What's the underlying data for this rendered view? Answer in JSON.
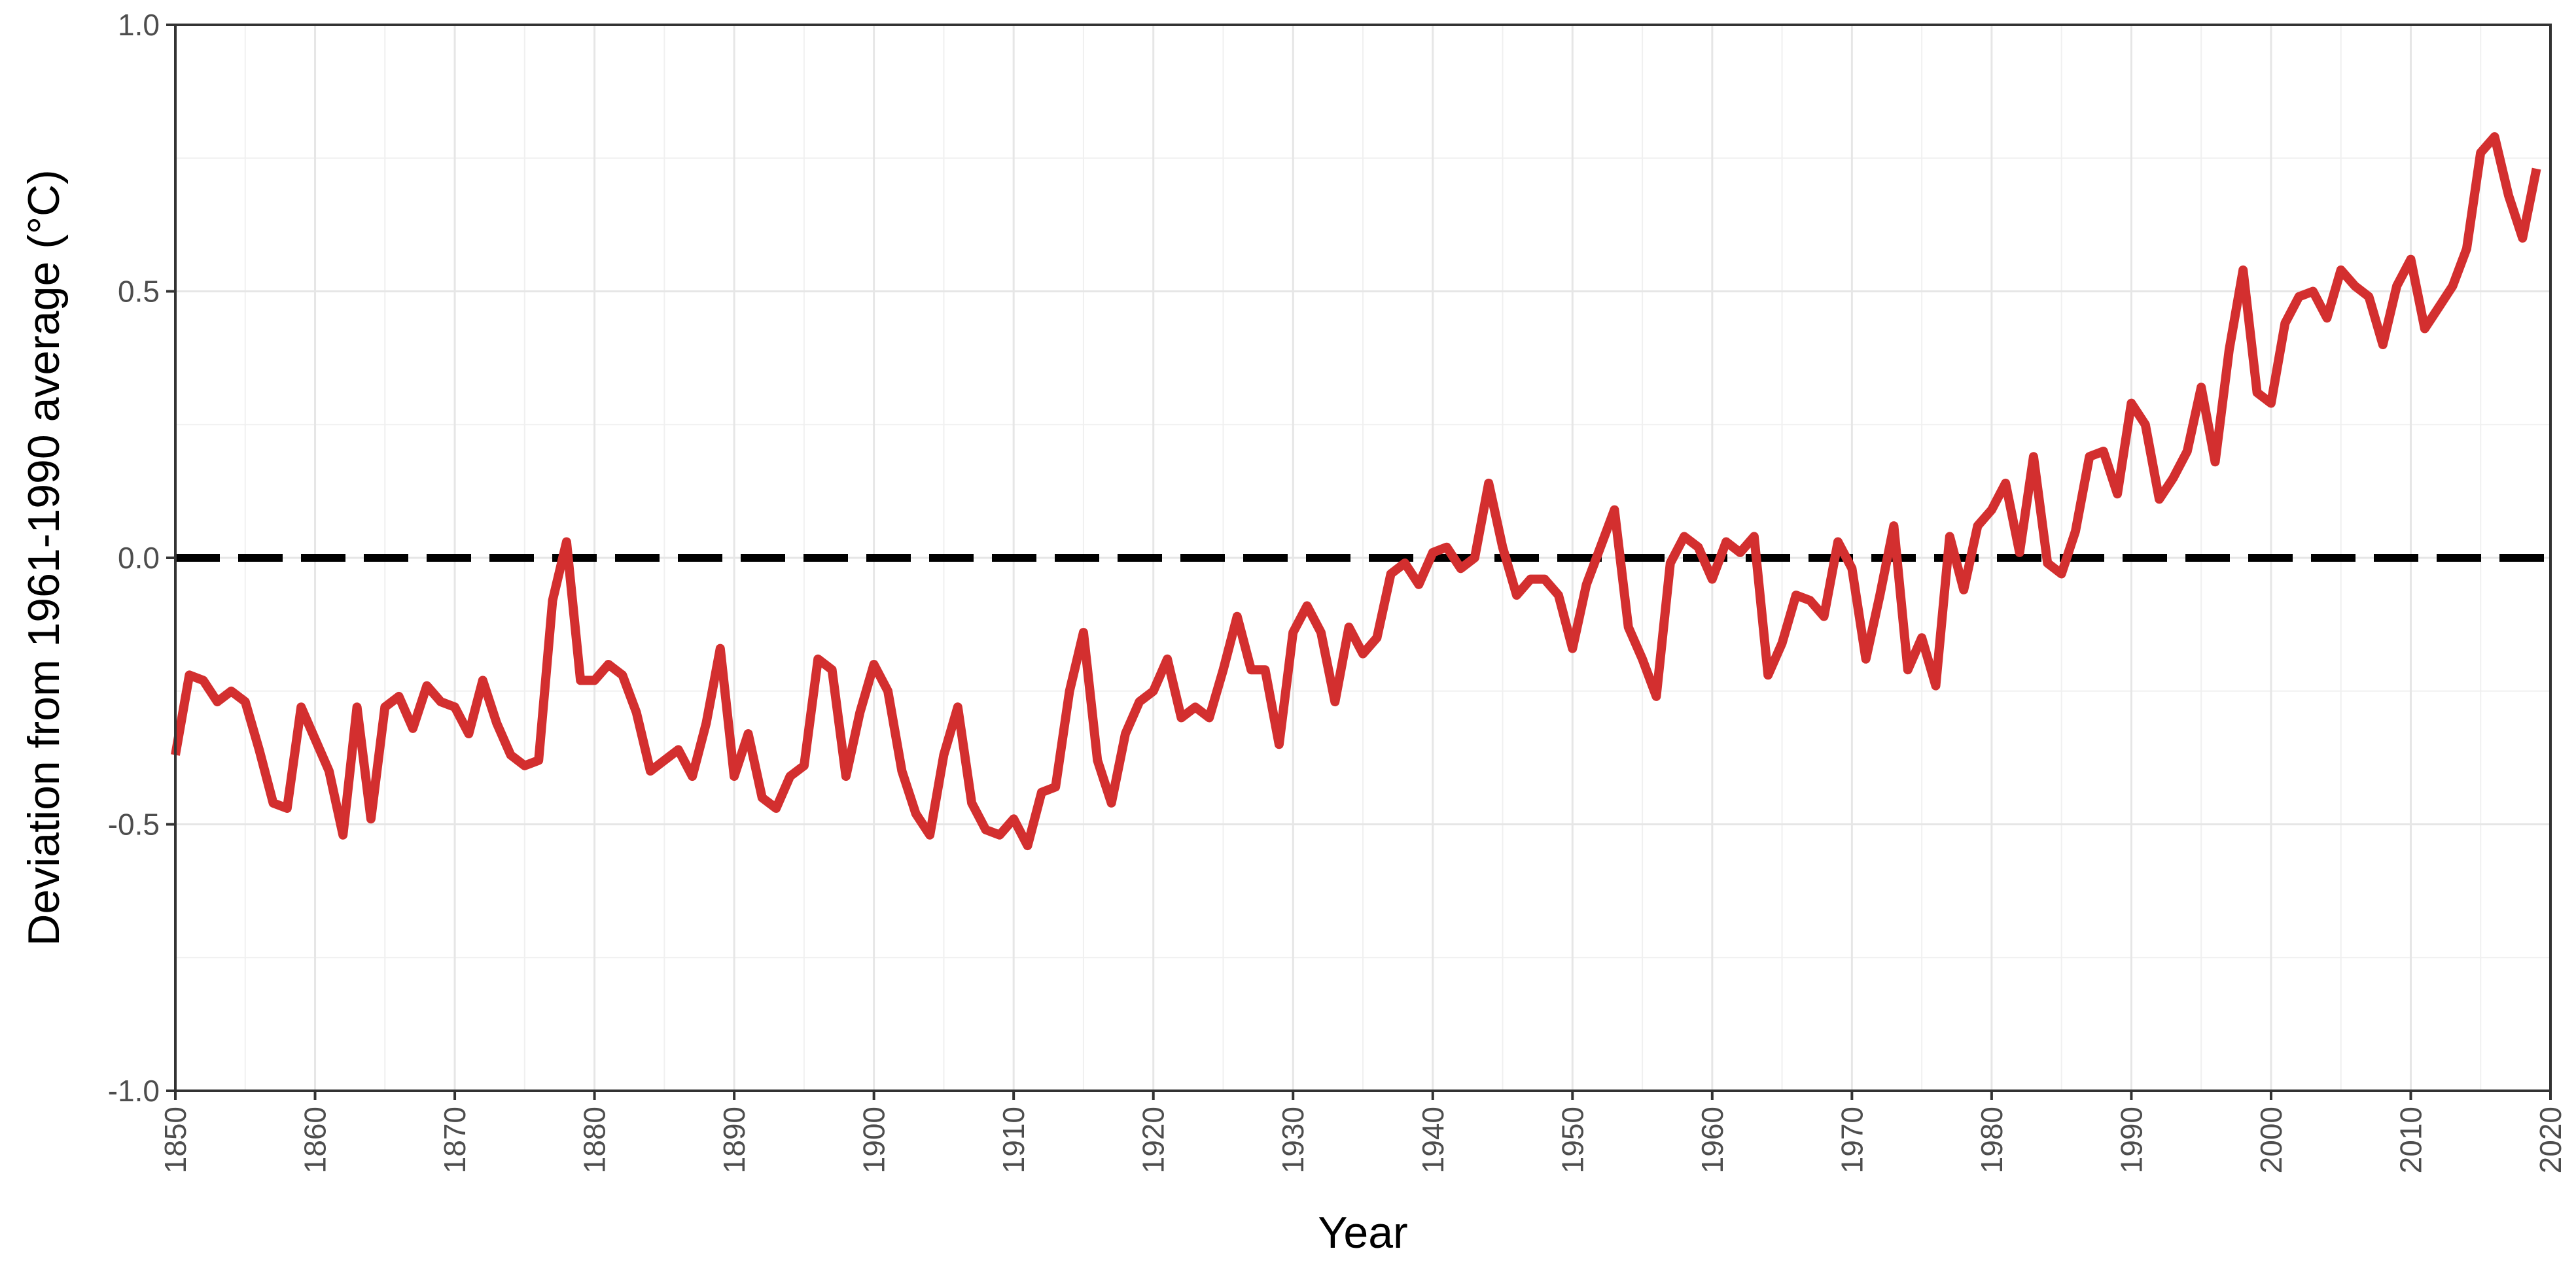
{
  "chart_data": {
    "type": "line",
    "xlabel": "Year",
    "ylabel": "Deviation from 1961-1990 average (°C)",
    "xlim": [
      1850,
      2020
    ],
    "ylim": [
      -1.0,
      1.0
    ],
    "x_ticks": [
      "1850",
      "1860",
      "1870",
      "1880",
      "1890",
      "1900",
      "1910",
      "1920",
      "1930",
      "1940",
      "1950",
      "1960",
      "1970",
      "1980",
      "1990",
      "2000",
      "2010",
      "2020"
    ],
    "y_ticks": [
      "-1.0",
      "-0.5",
      "0.0",
      "0.5",
      "1.0"
    ],
    "grid": true,
    "reference_line": {
      "y": 0.0,
      "style": "dashed",
      "color": "#000000"
    },
    "series": [
      {
        "color": "#d32f2f",
        "x": [
          1850,
          1851,
          1852,
          1853,
          1854,
          1855,
          1856,
          1857,
          1858,
          1859,
          1860,
          1861,
          1862,
          1863,
          1864,
          1865,
          1866,
          1867,
          1868,
          1869,
          1870,
          1871,
          1872,
          1873,
          1874,
          1875,
          1876,
          1877,
          1878,
          1879,
          1880,
          1881,
          1882,
          1883,
          1884,
          1885,
          1886,
          1887,
          1888,
          1889,
          1890,
          1891,
          1892,
          1893,
          1894,
          1895,
          1896,
          1897,
          1898,
          1899,
          1900,
          1901,
          1902,
          1903,
          1904,
          1905,
          1906,
          1907,
          1908,
          1909,
          1910,
          1911,
          1912,
          1913,
          1914,
          1915,
          1916,
          1917,
          1918,
          1919,
          1920,
          1921,
          1922,
          1923,
          1924,
          1925,
          1926,
          1927,
          1928,
          1929,
          1930,
          1931,
          1932,
          1933,
          1934,
          1935,
          1936,
          1937,
          1938,
          1939,
          1940,
          1941,
          1942,
          1943,
          1944,
          1945,
          1946,
          1947,
          1948,
          1949,
          1950,
          1951,
          1952,
          1953,
          1954,
          1955,
          1956,
          1957,
          1958,
          1959,
          1960,
          1961,
          1962,
          1963,
          1964,
          1965,
          1966,
          1967,
          1968,
          1969,
          1970,
          1971,
          1972,
          1973,
          1974,
          1975,
          1976,
          1977,
          1978,
          1979,
          1980,
          1981,
          1982,
          1983,
          1984,
          1985,
          1986,
          1987,
          1988,
          1989,
          1990,
          1991,
          1992,
          1993,
          1994,
          1995,
          1996,
          1997,
          1998,
          1999,
          2000,
          2001,
          2002,
          2003,
          2004,
          2005,
          2006,
          2007,
          2008,
          2009,
          2010,
          2011,
          2012,
          2013,
          2014,
          2015,
          2016,
          2017,
          2018,
          2019
        ],
        "values": [
          -0.37,
          -0.22,
          -0.23,
          -0.27,
          -0.25,
          -0.27,
          -0.36,
          -0.46,
          -0.47,
          -0.28,
          -0.34,
          -0.4,
          -0.52,
          -0.28,
          -0.49,
          -0.28,
          -0.26,
          -0.32,
          -0.24,
          -0.27,
          -0.28,
          -0.33,
          -0.23,
          -0.31,
          -0.37,
          -0.39,
          -0.38,
          -0.08,
          0.03,
          -0.23,
          -0.23,
          -0.2,
          -0.22,
          -0.29,
          -0.4,
          -0.38,
          -0.36,
          -0.41,
          -0.31,
          -0.17,
          -0.41,
          -0.33,
          -0.45,
          -0.47,
          -0.41,
          -0.39,
          -0.19,
          -0.21,
          -0.41,
          -0.29,
          -0.2,
          -0.25,
          -0.4,
          -0.48,
          -0.52,
          -0.37,
          -0.28,
          -0.46,
          -0.51,
          -0.52,
          -0.49,
          -0.54,
          -0.44,
          -0.43,
          -0.25,
          -0.14,
          -0.38,
          -0.46,
          -0.33,
          -0.27,
          -0.25,
          -0.19,
          -0.3,
          -0.28,
          -0.3,
          -0.21,
          -0.11,
          -0.21,
          -0.21,
          -0.35,
          -0.14,
          -0.09,
          -0.14,
          -0.27,
          -0.13,
          -0.18,
          -0.15,
          -0.03,
          -0.01,
          -0.05,
          0.01,
          0.02,
          -0.02,
          0.0,
          0.14,
          0.02,
          -0.07,
          -0.04,
          -0.04,
          -0.07,
          -0.17,
          -0.05,
          0.02,
          0.09,
          -0.13,
          -0.19,
          -0.26,
          -0.01,
          0.04,
          0.02,
          -0.04,
          0.03,
          0.01,
          0.04,
          -0.22,
          -0.16,
          -0.07,
          -0.08,
          -0.11,
          0.03,
          -0.02,
          -0.19,
          -0.07,
          0.06,
          -0.21,
          -0.15,
          -0.24,
          0.04,
          -0.06,
          0.06,
          0.09,
          0.14,
          0.01,
          0.19,
          -0.01,
          -0.03,
          0.05,
          0.19,
          0.2,
          0.12,
          0.29,
          0.25,
          0.11,
          0.15,
          0.2,
          0.32,
          0.18,
          0.39,
          0.54,
          0.31,
          0.29,
          0.44,
          0.49,
          0.5,
          0.45,
          0.54,
          0.51,
          0.49,
          0.4,
          0.51,
          0.56,
          0.43,
          0.47,
          0.51,
          0.58,
          0.76,
          0.79,
          0.68,
          0.6,
          0.73
        ]
      }
    ]
  }
}
